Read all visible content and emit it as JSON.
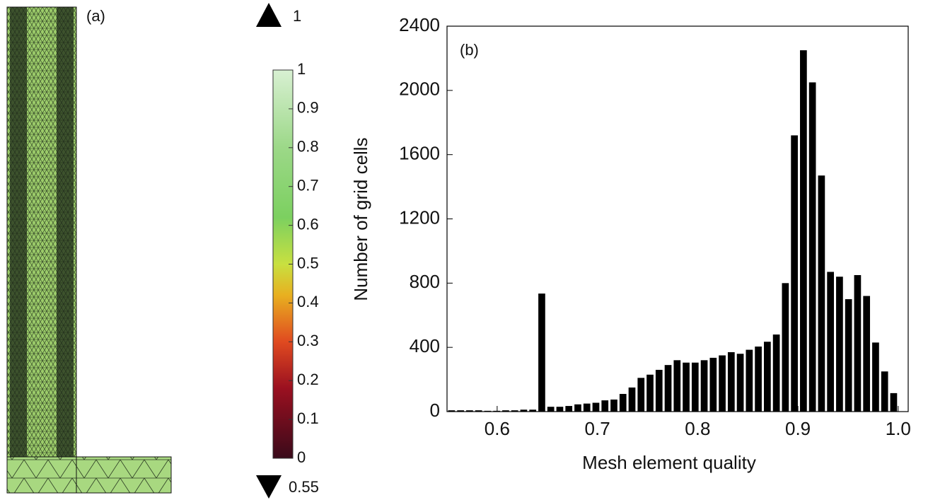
{
  "panel_a": {
    "label": "(a)",
    "colorbar": {
      "lim": [
        0,
        1
      ],
      "ticks": [
        0,
        0.1,
        0.2,
        0.3,
        0.4,
        0.5,
        0.6,
        0.7,
        0.8,
        0.9,
        1
      ],
      "max": 1,
      "min": 0.55
    }
  },
  "chart_data": {
    "type": "histogram",
    "annotation": "(b)",
    "xlabel": "Mesh element quality",
    "ylabel": "Number of grid cells",
    "bins": [
      0.55,
      0.559,
      0.568,
      0.577,
      0.586,
      0.595,
      0.604,
      0.613,
      0.622,
      0.631,
      0.64,
      0.649,
      0.658,
      0.667,
      0.676,
      0.685,
      0.694,
      0.703,
      0.712,
      0.721,
      0.73,
      0.739,
      0.748,
      0.757,
      0.766,
      0.775,
      0.784,
      0.793,
      0.802,
      0.811,
      0.82,
      0.829,
      0.838,
      0.847,
      0.856,
      0.865,
      0.874,
      0.883,
      0.892,
      0.901,
      0.91,
      0.919,
      0.928,
      0.937,
      0.946,
      0.955,
      0.964,
      0.973,
      0.982,
      0.991,
      1.0
    ],
    "values": [
      8,
      8,
      8,
      8,
      5,
      5,
      8,
      8,
      12,
      12,
      735,
      30,
      30,
      35,
      45,
      50,
      55,
      70,
      75,
      110,
      150,
      210,
      230,
      260,
      290,
      320,
      305,
      305,
      320,
      335,
      350,
      370,
      360,
      385,
      405,
      435,
      480,
      800,
      1720,
      2250,
      2050,
      1470,
      870,
      840,
      700,
      850,
      720,
      430,
      250,
      115
    ],
    "color": "#000000",
    "xlim": [
      0.55,
      1.01
    ],
    "xticks": [
      0.6,
      0.7,
      0.8,
      0.9,
      {
        "value": 1,
        "label": "1.0"
      }
    ],
    "ylim": [
      0,
      2400
    ],
    "yticks": [
      0,
      400,
      800,
      1200,
      1600,
      2000,
      2400
    ]
  }
}
